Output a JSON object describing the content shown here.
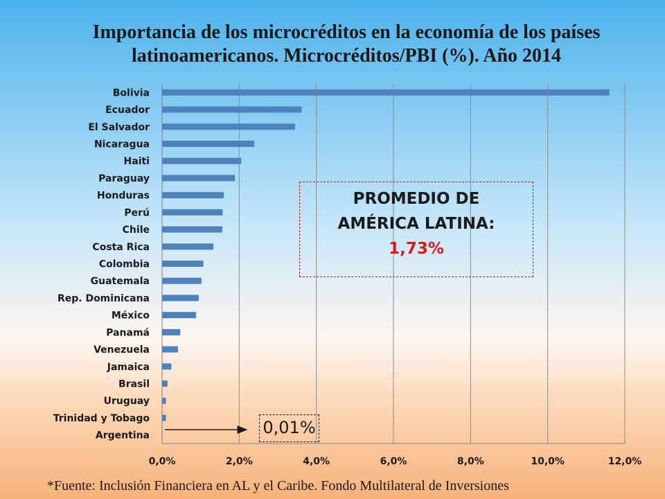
{
  "title": {
    "line1": "Importancia de los microcréditos en la economía de los países",
    "line2": "latinoamericanos.  Microcréditos/PBI (%). Año 2014"
  },
  "chart_data": {
    "type": "bar",
    "orientation": "horizontal",
    "title": "Importancia de los microcréditos en la economía de los países latinoamericanos.  Microcréditos/PBI (%). Año 2014",
    "xlabel": "",
    "ylabel": "",
    "xlim": [
      0,
      12
    ],
    "ticks": [
      0,
      2,
      4,
      6,
      8,
      10,
      12
    ],
    "tick_labels": [
      "0,0%",
      "2,0%",
      "4,0%",
      "6,0%",
      "8,0%",
      "10,0%",
      "12,0%"
    ],
    "grid": true,
    "bar_color": "#4f81bd",
    "categories": [
      "Bolivia",
      "Ecuador",
      "El Salvador",
      "Nicaragua",
      "Haiti",
      "Paraguay",
      "Honduras",
      "Perú",
      "Chile",
      "Costa Rica",
      "Colombia",
      "Guatemala",
      "Rep. Dominicana",
      "México",
      "Panamá",
      "Venezuela",
      "Jamaica",
      "Brasil",
      "Uruguay",
      "Trinidad y Tobago",
      "Argentina"
    ],
    "values": [
      11.6,
      3.62,
      3.45,
      2.39,
      2.05,
      1.89,
      1.6,
      1.57,
      1.56,
      1.33,
      1.07,
      1.02,
      0.95,
      0.88,
      0.47,
      0.41,
      0.24,
      0.14,
      0.1,
      0.1,
      0.01
    ]
  },
  "annotations": {
    "average_line1": "PROMEDIO DE",
    "average_line2": "AMÉRICA LATINA:",
    "average_value": "1,73%",
    "minimum_value": "0,01%"
  },
  "source": "*Fuente: Inclusión Financiera en AL y el Caribe. Fondo Multilateral de Inversiones"
}
